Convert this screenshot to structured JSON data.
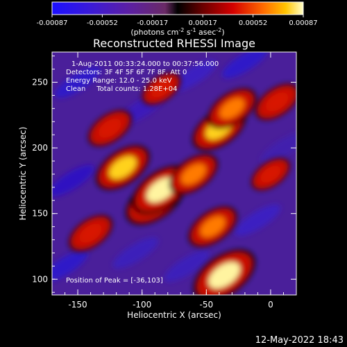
{
  "chart_data": {
    "type": "heatmap",
    "title": "Reconstructed RHESSI Image",
    "xlabel": "Heliocentric X (arcsec)",
    "ylabel": "Heliocentric Y (arcsec)",
    "xlim": [
      -170,
      20
    ],
    "ylim": [
      88,
      273
    ],
    "xticks": [
      -150,
      -100,
      -50,
      0
    ],
    "yticks": [
      100,
      150,
      200,
      250
    ],
    "colorbar": {
      "min": -0.00087,
      "max": 0.00087,
      "ticks": [
        "-0.00087",
        "-0.00052",
        "-0.00017",
        "0.00017",
        "0.00052",
        "0.00087"
      ],
      "unit_prefix": "(photons cm",
      "unit_exp1": "-2",
      "unit_mid": " s",
      "unit_exp2": "-1",
      "unit_mid2": " asec",
      "unit_exp3": "-2",
      "unit_suffix": ")"
    },
    "annotations": [
      "1-Aug-2011 00:33:24.000 to 00:37:56.000",
      "Detectors: 3F 4F 5F 6F 7F 8F, Att 0",
      "Energy Range: 12.0 - 25.0 keV",
      "Clean     Total counts: 1.28E+04"
    ],
    "peak_label": "Position of Peak = [-36,103]",
    "peaks": [
      {
        "x": -115,
        "y": 185,
        "value": 0.0007
      },
      {
        "x": -90,
        "y": 160,
        "value": 0.0008
      },
      {
        "x": -85,
        "y": 168,
        "value": 0.0008
      },
      {
        "x": -60,
        "y": 180,
        "value": 0.0006
      },
      {
        "x": -40,
        "y": 215,
        "value": 0.0007
      },
      {
        "x": -30,
        "y": 230,
        "value": 0.0006
      },
      {
        "x": -45,
        "y": 140,
        "value": 0.0006
      },
      {
        "x": -36,
        "y": 103,
        "value": 0.00087
      },
      {
        "x": -140,
        "y": 135,
        "value": 0.0005
      },
      {
        "x": -125,
        "y": 215,
        "value": 0.0005
      },
      {
        "x": -85,
        "y": 245,
        "value": 0.0004
      },
      {
        "x": 5,
        "y": 235,
        "value": 0.0005
      },
      {
        "x": 0,
        "y": 180,
        "value": 0.0004
      }
    ]
  },
  "footer": {
    "timestamp": "12-May-2022 18:43"
  }
}
